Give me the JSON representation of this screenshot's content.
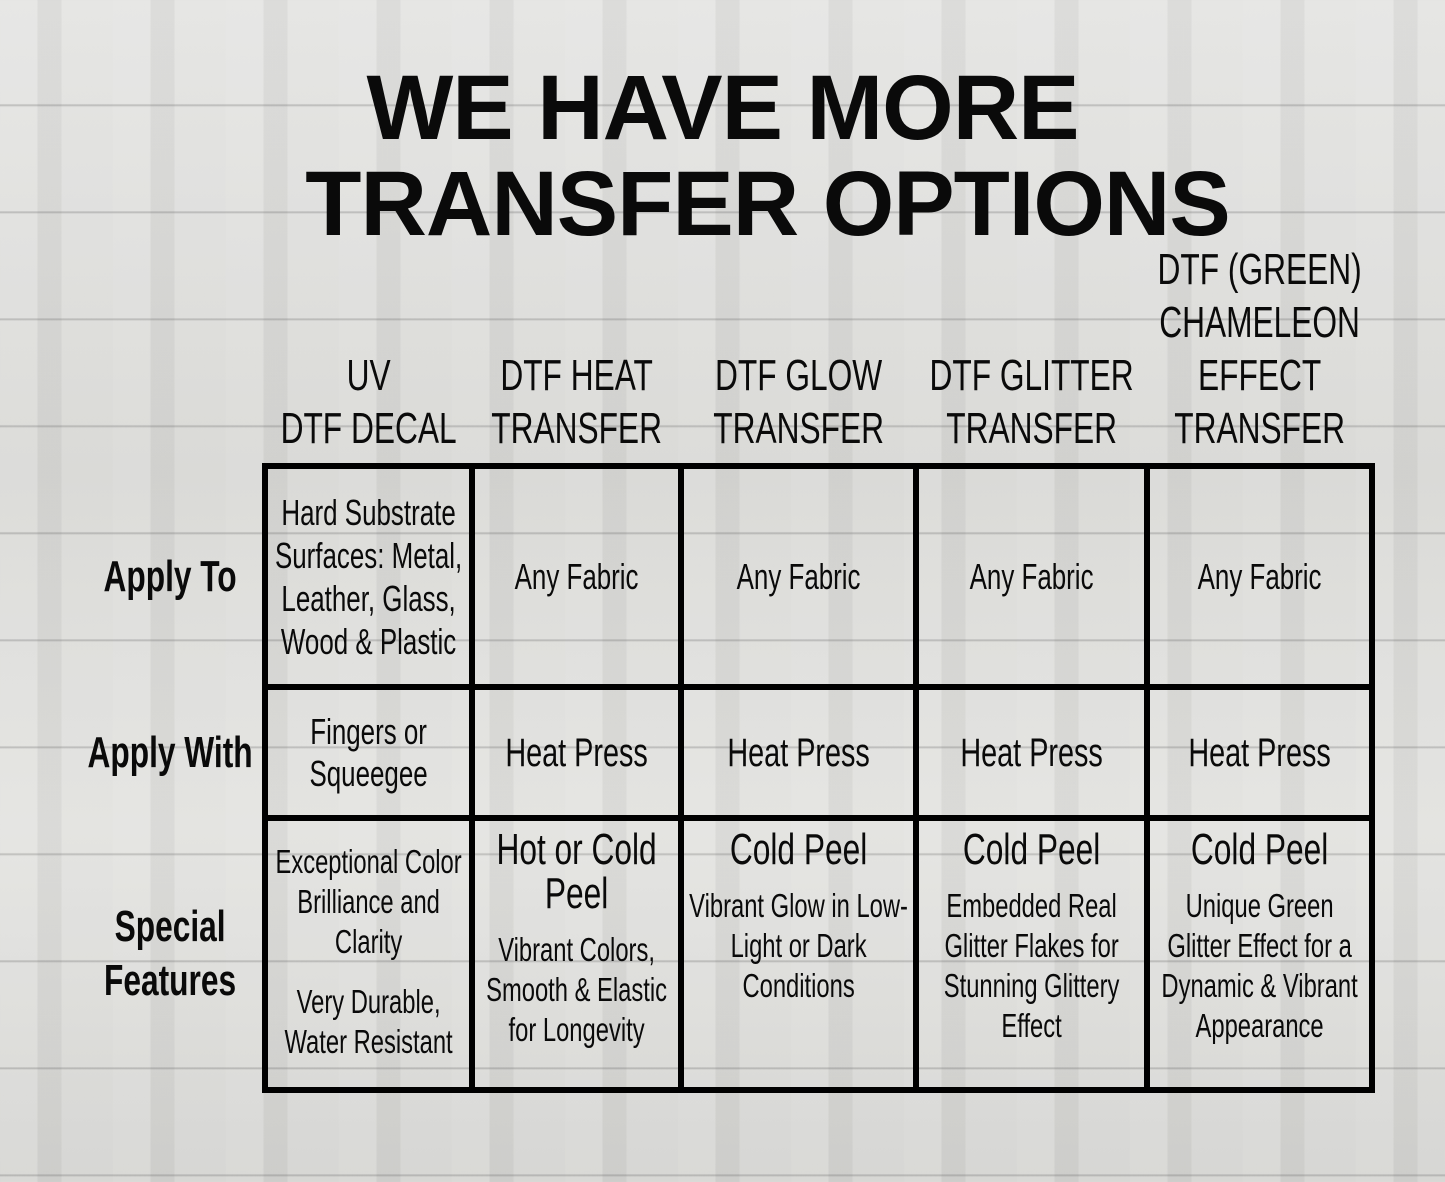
{
  "title": {
    "line1": "WE HAVE MORE",
    "line2": "TRANSFER OPTIONS"
  },
  "columns": [
    {
      "lines": [
        "UV",
        "DTF DECAL"
      ]
    },
    {
      "lines": [
        "DTF HEAT",
        "TRANSFER"
      ]
    },
    {
      "lines": [
        "DTF GLOW",
        "TRANSFER"
      ]
    },
    {
      "lines": [
        "DTF GLITTER",
        "TRANSFER"
      ]
    },
    {
      "lines": [
        "DTF  (GREEN)",
        "CHAMELEON",
        "EFFECT",
        "TRANSFER"
      ]
    }
  ],
  "rows": [
    {
      "label": [
        "Apply To"
      ]
    },
    {
      "label": [
        "Apply With"
      ]
    },
    {
      "label": [
        "Special",
        "Features"
      ]
    }
  ],
  "cells": {
    "apply_to": [
      "Hard Substrate Surfaces: Metal, Leather, Glass, Wood & Plastic",
      "Any Fabric",
      "Any Fabric",
      "Any Fabric",
      "Any Fabric"
    ],
    "apply_with": [
      "Fingers or Squeegee",
      "Heat Press",
      "Heat Press",
      "Heat Press",
      "Heat Press"
    ],
    "special": [
      {
        "head": "",
        "body": "Exceptional Color Brilliance and Clarity",
        "body2": "Very Durable, Water Resistant"
      },
      {
        "head": "Hot or Cold Peel",
        "body": "Vibrant Colors, Smooth & Elastic for Longevity",
        "body2": ""
      },
      {
        "head": "Cold Peel",
        "body": "Vibrant Glow in Low-Light or Dark Conditions",
        "body2": ""
      },
      {
        "head": "Cold Peel",
        "body": "Embedded Real Glitter Flakes for Stunning Glittery Effect",
        "body2": ""
      },
      {
        "head": "Cold Peel",
        "body": "Unique Green Glitter Effect for a Dynamic & Vibrant Appearance",
        "body2": ""
      }
    ]
  }
}
